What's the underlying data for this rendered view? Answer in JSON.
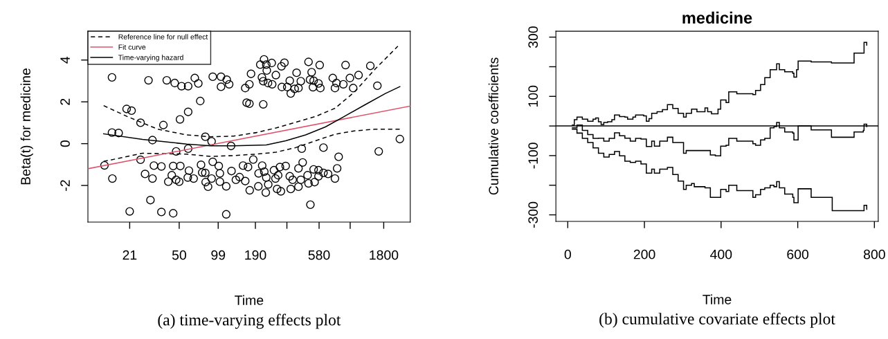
{
  "chart_data": [
    {
      "type": "scatter",
      "xlabel": "Time",
      "ylabel": "Beta(t) for medicine",
      "annotations": [
        "(a) time-varying effects plot"
      ],
      "xlim": [
        10.1,
        2865
      ],
      "xticks": [
        21,
        50,
        99,
        190,
        {
          "value": 330,
          "label": null
        },
        580,
        {
          "value": 1000,
          "label": null
        },
        1800
      ],
      "ylim": [
        -3.75,
        5.38
      ],
      "yticks": [
        -2,
        0,
        2,
        4
      ],
      "grid": false,
      "legend": "top left",
      "log": "x",
      "series": [
        {
          "type": "scatter",
          "marker": "circle",
          "color": "#000000",
          "x": [
            15.4,
            29.2,
            40.2,
            46.2,
            52.1,
            58.5,
            65.7,
            69.9,
            90.0,
            104,
            104,
            115,
            120,
            159,
            171,
            176,
            221,
            207,
            230,
            253,
            232,
            213,
            218,
            237,
            255,
            272,
            300,
            316,
            302,
            332,
            347,
            353,
            378,
            391,
            404,
            421,
            482,
            509,
            495,
            527,
            521,
            574,
            586,
            593,
            737,
            766,
            787,
            887,
            922,
            995,
            1054,
            1158,
            1423,
            1610,
            72.3,
            163,
            171,
            218,
            19.9,
            21.7,
            58.5,
            50.7,
            25.4,
            37.9,
            15.4,
            17.3,
            31.3,
            79.0,
            88.2,
            124,
            58.5,
            47.4,
            25.4,
            13.5,
            428,
            626,
            817,
            1649,
            2388,
            32.1,
            36.6,
            27.5,
            31.3,
            45.0,
            51.0,
            43.9,
            47.4,
            41.3,
            50,
            59.3,
            58.1,
            64.4,
            73.3,
            74.8,
            79.0,
            79.5,
            82.9,
            90.0,
            100,
            102,
            88.2,
            102,
            114,
            125,
            135,
            144,
            153,
            167,
            159,
            172,
            183,
            200,
            201,
            214,
            222,
            230,
            238,
            228,
            263,
            270,
            278,
            297,
            283,
            292,
            323,
            347,
            365,
            353,
            404,
            421,
            435,
            404,
            474,
            482,
            527,
            536,
            574,
            574,
            626,
            679,
            766,
            796,
            15.5,
            21,
            30.2,
            36.6,
            45.0,
            114,
            498
          ],
          "values": [
            3.17,
            3.03,
            3.03,
            2.9,
            2.75,
            2.75,
            3.14,
            2.88,
            3.2,
            2.72,
            3.2,
            3.06,
            2.84,
            2.66,
            2.84,
            3.34,
            4.03,
            3.78,
            3.78,
            3.86,
            3.5,
            3.17,
            2.99,
            2.9,
            2.84,
            3.28,
            3.7,
            3.87,
            2.71,
            2.71,
            3.01,
            2.4,
            2.62,
            3.39,
            2.66,
            2.99,
            3.91,
            3.42,
            3.06,
            3.01,
            2.7,
            2.88,
            3.76,
            2.66,
            3.14,
            2.66,
            2.9,
            2.84,
            3.76,
            3.14,
            2.66,
            3.28,
            3.72,
            2.77,
            2.04,
            1.96,
            1.91,
            1.88,
            1.66,
            1.58,
            1.52,
            1.16,
            1.0,
            0.89,
            0.53,
            0.51,
            0.17,
            0.33,
            0.11,
            -0.11,
            -0.24,
            -0.37,
            -0.77,
            -1.04,
            -0.24,
            -0.19,
            -0.63,
            -0.37,
            0.22,
            -1.05,
            -1.09,
            -1.45,
            -1.67,
            -1.07,
            -1.07,
            -1.51,
            -1.73,
            -1.82,
            -1.82,
            -1.29,
            -1.62,
            -1.67,
            -1.01,
            -1.38,
            -1.4,
            -1.84,
            -2.06,
            -0.87,
            -1.07,
            -1.42,
            -1.67,
            -1.82,
            -2.04,
            -1.31,
            -1.73,
            -1.6,
            -1.05,
            -1.12,
            -1.79,
            -2.23,
            -0.76,
            -2.04,
            -1.42,
            -1.05,
            -1.34,
            -1.62,
            -1.95,
            -2.34,
            -1.27,
            -1.67,
            -2.17,
            -2.28,
            -1.51,
            -1.12,
            -1.07,
            -1.56,
            -1.73,
            -2.17,
            -1.18,
            -1.73,
            -0.9,
            -2.06,
            -1.51,
            -1.9,
            -1.23,
            -1.84,
            -1.27,
            -1.56,
            -1.4,
            -1.45,
            -1.67,
            -1.18,
            -1.67,
            -3.24,
            -2.7,
            -3.27,
            -3.33,
            -3.38,
            -2.92
          ]
        },
        {
          "type": "line",
          "name": "Reference line for null effect",
          "line_style": "dashed",
          "color": "#000000",
          "x": [
            13.3,
            20.1,
            34.4,
            56.9,
            86.4,
            130,
            194,
            272,
            384,
            545,
            766,
            1073,
            1545,
            2305
          ],
          "values": [
            1.82,
            1.3,
            0.69,
            0.42,
            0.33,
            0.36,
            0.53,
            0.75,
            1.02,
            1.3,
            1.69,
            2.46,
            3.56,
            4.66
          ]
        },
        {
          "type": "line",
          "line_style": "dashed",
          "color": "#000000",
          "x": [
            13.3,
            26.3,
            56.9,
            86.4,
            130,
            194,
            272,
            384,
            545,
            766,
            1073,
            1545,
            2388
          ],
          "values": [
            -0.85,
            -0.46,
            -0.5,
            -0.61,
            -0.57,
            -0.5,
            -0.41,
            -0.19,
            0.14,
            0.45,
            0.61,
            0.69,
            0.69
          ]
        },
        {
          "type": "line",
          "name": "Fit curve",
          "line_style": "solid",
          "color": "#df536b",
          "x": [
            10.1,
            2865
          ],
          "values": [
            -1.2,
            1.8
          ]
        },
        {
          "type": "line",
          "name": "Time-varying hazard",
          "line_style": "solid",
          "color": "#000000",
          "x": [
            13.3,
            26.3,
            56.9,
            86.4,
            130,
            230,
            323,
            458,
            647,
            901,
            1288,
            1854,
            2388
          ],
          "values": [
            0.47,
            0.2,
            -0.02,
            -0.1,
            -0.1,
            -0.06,
            0.14,
            0.42,
            0.8,
            1.3,
            1.85,
            2.4,
            2.73
          ]
        }
      ]
    },
    {
      "type": "step",
      "title": "medicine",
      "xlabel": "Time",
      "ylabel": "Cumulative coefficients",
      "annotations": [
        "(b) cumulative covariate effects plot"
      ],
      "xlim": [
        -31,
        810
      ],
      "xticks": [
        0,
        200,
        400,
        600,
        800
      ],
      "ylim": [
        -322,
        320
      ],
      "yticks": [
        {
          "value": -300,
          "label": "-300"
        },
        {
          "value": -200,
          "label": null
        },
        {
          "value": -100,
          "label": "-100"
        },
        {
          "value": 0,
          "label": null
        },
        {
          "value": 100,
          "label": "100"
        },
        {
          "value": 200,
          "label": null
        },
        {
          "value": 300,
          "label": "300"
        }
      ],
      "grid": false,
      "ref_lines": [
        {
          "axis": "y",
          "value": 0,
          "color": "#000000"
        }
      ],
      "series": [
        {
          "color": "#000000",
          "x": [
            12,
            17,
            24,
            38,
            52,
            66,
            73,
            80,
            87,
            94,
            104,
            115,
            122,
            135,
            149,
            156,
            170,
            177,
            198,
            205,
            212,
            219,
            233,
            247,
            260,
            274,
            288,
            302,
            309,
            323,
            337,
            358,
            365,
            375,
            385,
            392,
            399,
            413,
            420,
            441,
            483,
            490,
            503,
            514,
            528,
            538,
            545,
            552,
            566,
            587,
            590,
            597,
            601,
            635,
            688,
            743,
            747,
            771,
            773,
            780
          ],
          "values": [
            3,
            21,
            30,
            23,
            16,
            23,
            27,
            14,
            5,
            12,
            14,
            21,
            37,
            32,
            30,
            23,
            30,
            37,
            34,
            16,
            25,
            43,
            48,
            55,
            72,
            59,
            43,
            30,
            43,
            57,
            48,
            61,
            48,
            41,
            41,
            57,
            88,
            79,
            115,
            109,
            106,
            120,
            140,
            163,
            190,
            190,
            210,
            190,
            183,
            178,
            165,
            190,
            219,
            216,
            213,
            213,
            246,
            246,
            282,
            273
          ]
        },
        {
          "color": "#000000",
          "x": [
            12,
            24,
            38,
            52,
            66,
            80,
            94,
            108,
            122,
            135,
            149,
            163,
            177,
            191,
            205,
            219,
            226,
            240,
            260,
            274,
            302,
            309,
            330,
            358,
            372,
            385,
            399,
            413,
            420,
            441,
            483,
            490,
            503,
            514,
            528,
            538,
            545,
            552,
            566,
            587,
            590,
            601,
            635,
            635,
            688,
            743,
            747,
            771,
            773,
            780
          ],
          "values": [
            -6,
            3,
            -15,
            -29,
            -42,
            -41,
            -51,
            -42,
            -23,
            -33,
            -41,
            -51,
            -42,
            -44,
            -69,
            -51,
            -68,
            -51,
            -38,
            -56,
            -92,
            -83,
            -83,
            -83,
            -98,
            -101,
            -68,
            -65,
            -42,
            -51,
            -60,
            -65,
            -47,
            -42,
            -6,
            -2,
            12,
            -6,
            -20,
            -24,
            -47,
            0,
            0,
            -13,
            -38,
            -38,
            -20,
            -15,
            6,
            -2
          ]
        },
        {
          "color": "#000000",
          "x": [
            12,
            24,
            38,
            52,
            66,
            80,
            94,
            108,
            122,
            135,
            149,
            163,
            177,
            191,
            205,
            219,
            226,
            240,
            260,
            274,
            288,
            302,
            309,
            323,
            330,
            358,
            372,
            385,
            399,
            413,
            420,
            441,
            483,
            490,
            503,
            514,
            528,
            538,
            545,
            552,
            566,
            587,
            590,
            601,
            632,
            635,
            688,
            690,
            771,
            773,
            780
          ],
          "values": [
            -11,
            -24,
            -42,
            -56,
            -74,
            -92,
            -105,
            -96,
            -86,
            -101,
            -119,
            -123,
            -119,
            -128,
            -159,
            -146,
            -159,
            -146,
            -140,
            -164,
            -186,
            -214,
            -200,
            -194,
            -205,
            -209,
            -241,
            -241,
            -214,
            -221,
            -200,
            -218,
            -241,
            -232,
            -214,
            -209,
            -200,
            -205,
            -188,
            -209,
            -230,
            -241,
            -259,
            -212,
            -212,
            -241,
            -241,
            -286,
            -286,
            -268,
            -281
          ]
        }
      ]
    }
  ]
}
